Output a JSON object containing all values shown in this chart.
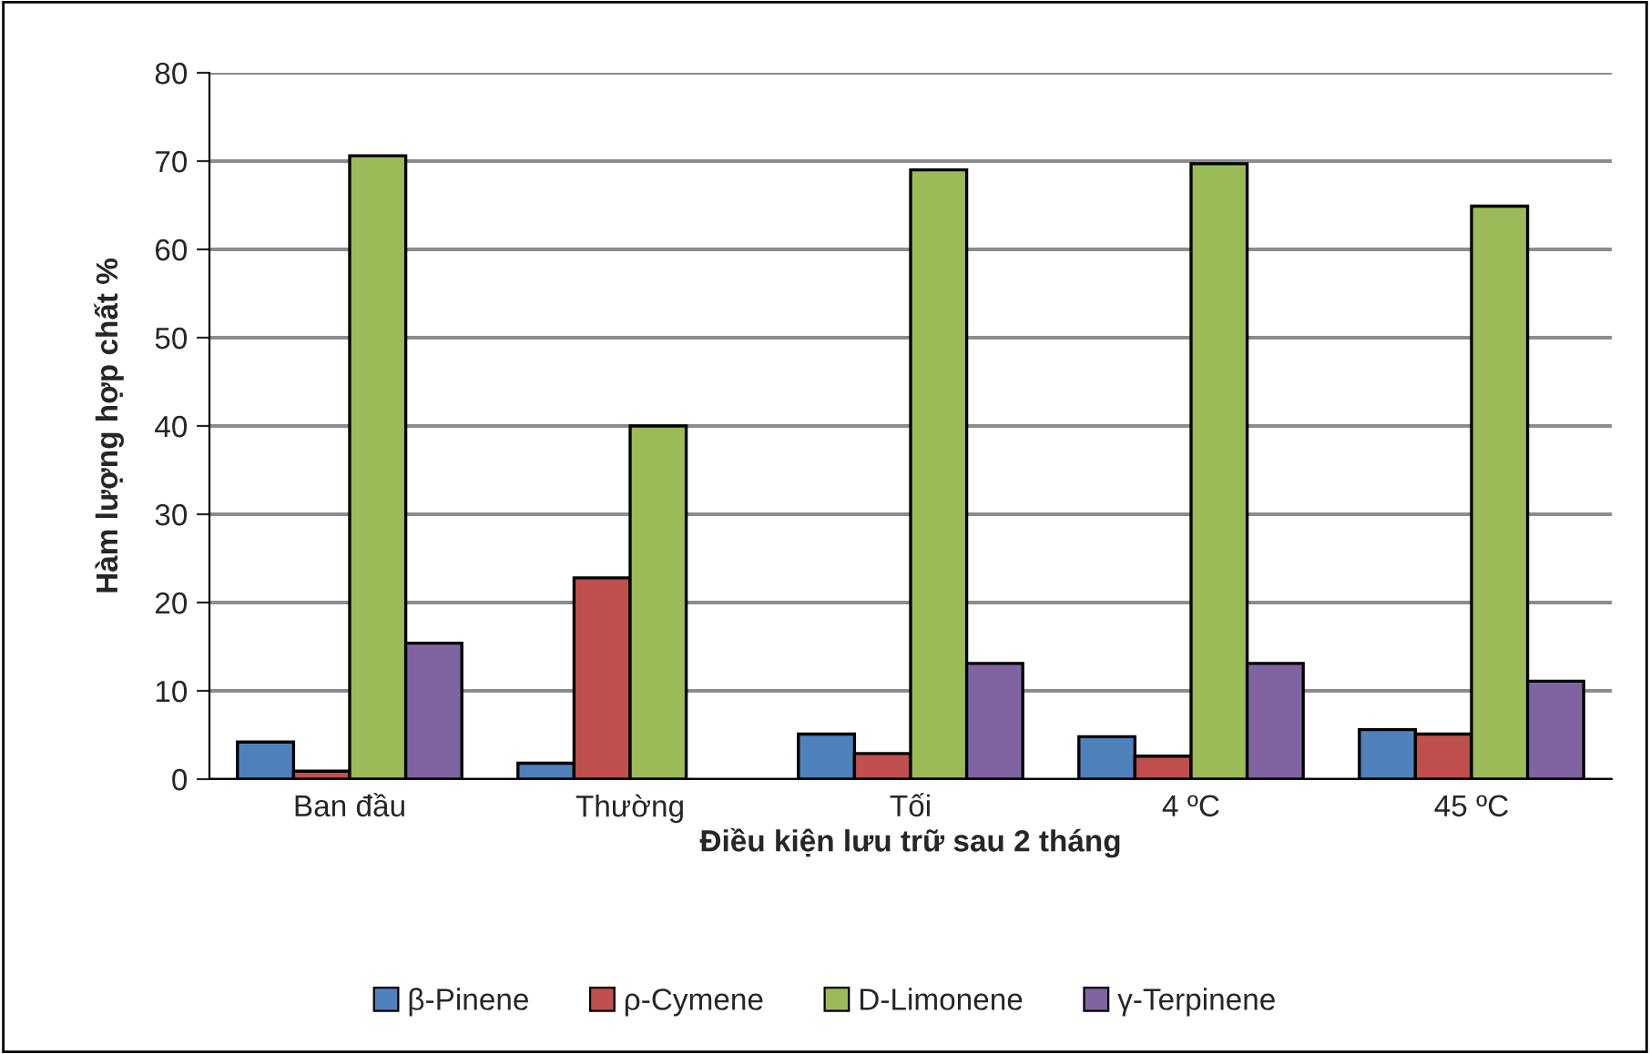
{
  "chart_data": {
    "type": "bar",
    "xlabel": "Điều kiện lưu trữ sau 2 tháng",
    "ylabel": "Hàm lượng hợp chất %",
    "categories": [
      "Ban đầu",
      "Thường",
      "Tối",
      "4 ºC",
      "45 ºC"
    ],
    "series": [
      {
        "name": "β-Pinene",
        "color": "#4f81bd",
        "values": [
          4.2,
          1.8,
          5.1,
          4.8,
          5.6
        ]
      },
      {
        "name": "ρ-Cymene",
        "color": "#c0504d",
        "values": [
          0.9,
          22.8,
          2.9,
          2.6,
          5.1
        ]
      },
      {
        "name": "D-Limonene",
        "color": "#9bbb59",
        "values": [
          70.6,
          40.0,
          69.0,
          69.7,
          64.9
        ]
      },
      {
        "name": "γ-Terpinene",
        "color": "#8064a2",
        "values": [
          15.4,
          null,
          13.1,
          13.1,
          11.1
        ]
      }
    ],
    "ylim": [
      0,
      80
    ],
    "yticks": [
      0,
      10,
      20,
      30,
      40,
      50,
      60,
      70,
      80
    ],
    "grid": "y",
    "legend": "bottom"
  }
}
